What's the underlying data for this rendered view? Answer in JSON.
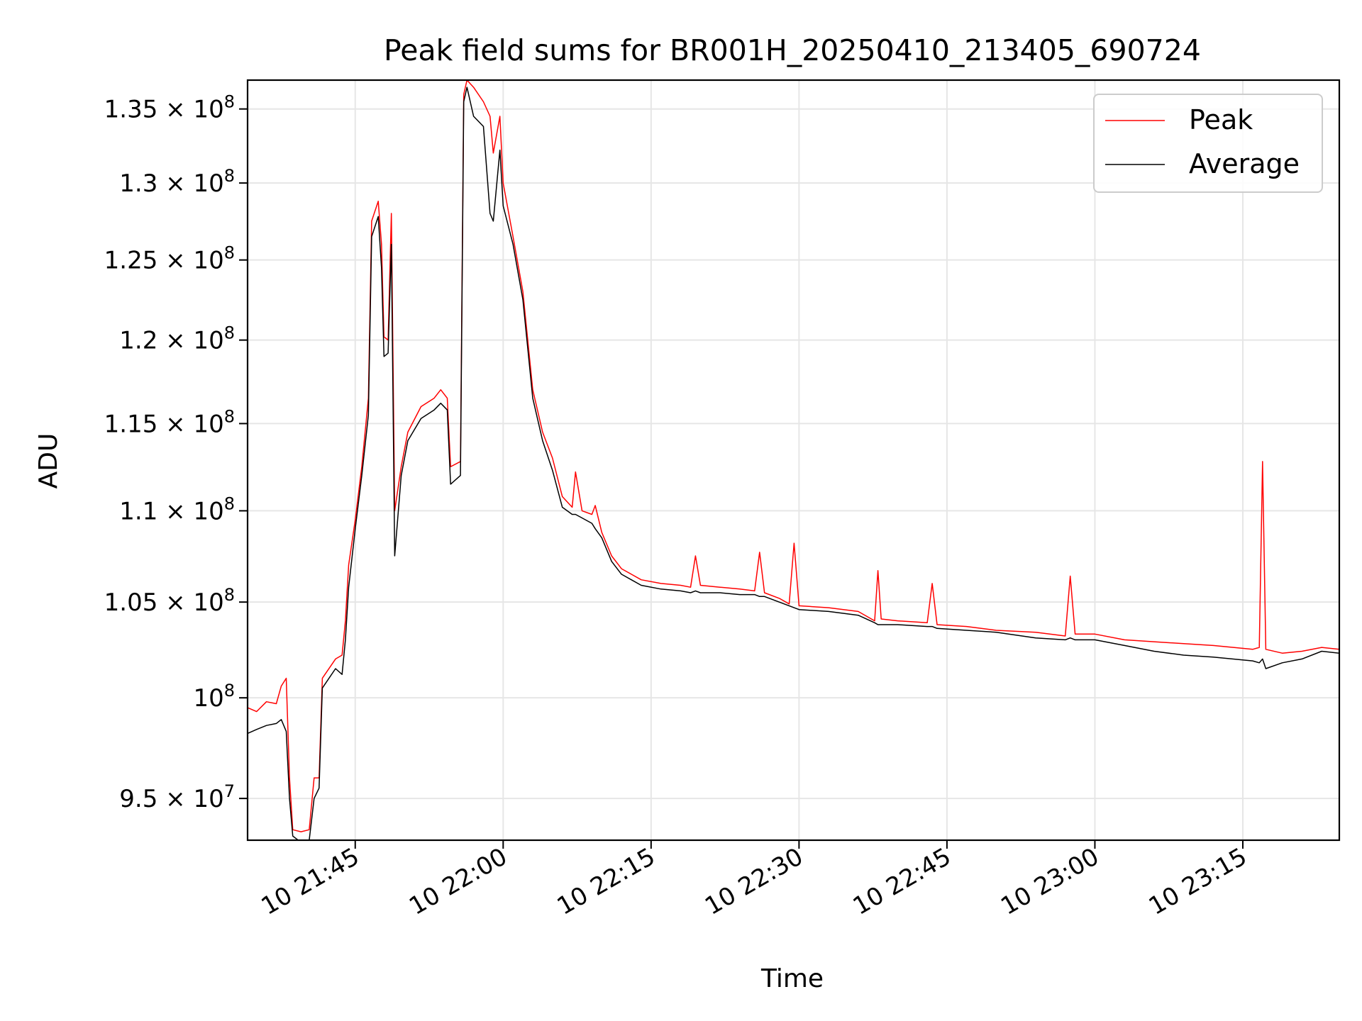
{
  "chart_data": {
    "type": "line",
    "title": "Peak field sums for BR001H_20250410_213405_690724",
    "xlabel": "Time",
    "ylabel": "ADU",
    "x_range": [
      "2025-04-10 21:34:05",
      "2025-04-10 23:24:47"
    ],
    "ylim": [
      93000000,
      137000000
    ],
    "y_scale": "log",
    "grid": true,
    "legend_position": "top-right",
    "x_ticks": [
      {
        "time": "2025-04-10 21:45:00",
        "label": "10 21:45"
      },
      {
        "time": "2025-04-10 22:00:00",
        "label": "10 22:00"
      },
      {
        "time": "2025-04-10 22:15:00",
        "label": "10 22:15"
      },
      {
        "time": "2025-04-10 22:30:00",
        "label": "10 22:30"
      },
      {
        "time": "2025-04-10 22:45:00",
        "label": "10 22:45"
      },
      {
        "time": "2025-04-10 23:00:00",
        "label": "10 23:00"
      },
      {
        "time": "2025-04-10 23:15:00",
        "label": "10 23:15"
      }
    ],
    "y_ticks": [
      {
        "value": 95000000,
        "mant": "9.5",
        "exp": "7"
      },
      {
        "value": 100000000,
        "mant": "",
        "exp": "8"
      },
      {
        "value": 105000000,
        "mant": "1.05",
        "exp": "8"
      },
      {
        "value": 110000000,
        "mant": "1.1",
        "exp": "8"
      },
      {
        "value": 115000000,
        "mant": "1.15",
        "exp": "8"
      },
      {
        "value": 120000000,
        "mant": "1.2",
        "exp": "8"
      },
      {
        "value": 125000000,
        "mant": "1.25",
        "exp": "8"
      },
      {
        "value": 130000000,
        "mant": "1.3",
        "exp": "8"
      },
      {
        "value": 135000000,
        "mant": "1.35",
        "exp": "8"
      }
    ],
    "series": [
      {
        "name": "Peak",
        "color": "#ff0000",
        "points": [
          [
            "2025-04-10 21:34:05",
            99500000
          ],
          [
            "2025-04-10 21:35:00",
            99300000
          ],
          [
            "2025-04-10 21:36:00",
            99800000
          ],
          [
            "2025-04-10 21:37:00",
            99700000
          ],
          [
            "2025-04-10 21:37:30",
            100600000
          ],
          [
            "2025-04-10 21:38:00",
            101000000
          ],
          [
            "2025-04-10 21:38:20",
            96000000
          ],
          [
            "2025-04-10 21:38:40",
            93500000
          ],
          [
            "2025-04-10 21:39:30",
            93400000
          ],
          [
            "2025-04-10 21:40:20",
            93500000
          ],
          [
            "2025-04-10 21:40:50",
            96000000
          ],
          [
            "2025-04-10 21:41:20",
            96000000
          ],
          [
            "2025-04-10 21:41:40",
            101000000
          ],
          [
            "2025-04-10 21:43:00",
            102000000
          ],
          [
            "2025-04-10 21:43:40",
            102200000
          ],
          [
            "2025-04-10 21:44:00",
            104000000
          ],
          [
            "2025-04-10 21:44:20",
            107000000
          ],
          [
            "2025-04-10 21:45:00",
            109500000
          ],
          [
            "2025-04-10 21:45:40",
            112500000
          ],
          [
            "2025-04-10 21:46:20",
            116500000
          ],
          [
            "2025-04-10 21:46:40",
            127500000
          ],
          [
            "2025-04-10 21:47:20",
            128800000
          ],
          [
            "2025-04-10 21:47:40",
            126000000
          ],
          [
            "2025-04-10 21:47:55",
            120200000
          ],
          [
            "2025-04-10 21:48:20",
            120000000
          ],
          [
            "2025-04-10 21:48:40",
            128000000
          ],
          [
            "2025-04-10 21:49:00",
            110000000
          ],
          [
            "2025-04-10 21:49:40",
            112500000
          ],
          [
            "2025-04-10 21:50:20",
            114500000
          ],
          [
            "2025-04-10 21:51:40",
            116000000
          ],
          [
            "2025-04-10 21:53:00",
            116500000
          ],
          [
            "2025-04-10 21:53:40",
            117000000
          ],
          [
            "2025-04-10 21:54:20",
            116500000
          ],
          [
            "2025-04-10 21:54:40",
            112500000
          ],
          [
            "2025-04-10 21:55:40",
            112800000
          ],
          [
            "2025-04-10 21:56:00",
            136000000
          ],
          [
            "2025-04-10 21:56:20",
            137000000
          ],
          [
            "2025-04-10 21:57:00",
            136500000
          ],
          [
            "2025-04-10 21:58:00",
            135500000
          ],
          [
            "2025-04-10 21:58:40",
            134500000
          ],
          [
            "2025-04-10 21:59:00",
            132000000
          ],
          [
            "2025-04-10 21:59:40",
            134500000
          ],
          [
            "2025-04-10 22:00:00",
            130000000
          ],
          [
            "2025-04-10 22:01:00",
            126500000
          ],
          [
            "2025-04-10 22:02:00",
            123000000
          ],
          [
            "2025-04-10 22:03:00",
            117000000
          ],
          [
            "2025-04-10 22:04:00",
            114500000
          ],
          [
            "2025-04-10 22:05:00",
            113000000
          ],
          [
            "2025-04-10 22:06:00",
            110800000
          ],
          [
            "2025-04-10 22:07:00",
            110200000
          ],
          [
            "2025-04-10 22:07:20",
            112200000
          ],
          [
            "2025-04-10 22:08:00",
            110000000
          ],
          [
            "2025-04-10 22:09:00",
            109800000
          ],
          [
            "2025-04-10 22:09:20",
            110300000
          ],
          [
            "2025-04-10 22:10:00",
            108800000
          ],
          [
            "2025-04-10 22:11:00",
            107500000
          ],
          [
            "2025-04-10 22:12:00",
            106800000
          ],
          [
            "2025-04-10 22:13:00",
            106500000
          ],
          [
            "2025-04-10 22:14:00",
            106200000
          ],
          [
            "2025-04-10 22:16:00",
            106000000
          ],
          [
            "2025-04-10 22:18:00",
            105900000
          ],
          [
            "2025-04-10 22:19:00",
            105800000
          ],
          [
            "2025-04-10 22:19:30",
            107500000
          ],
          [
            "2025-04-10 22:20:00",
            105900000
          ],
          [
            "2025-04-10 22:22:00",
            105800000
          ],
          [
            "2025-04-10 22:24:00",
            105700000
          ],
          [
            "2025-04-10 22:25:30",
            105600000
          ],
          [
            "2025-04-10 22:26:00",
            107700000
          ],
          [
            "2025-04-10 22:26:30",
            105500000
          ],
          [
            "2025-04-10 22:28:00",
            105200000
          ],
          [
            "2025-04-10 22:29:00",
            104900000
          ],
          [
            "2025-04-10 22:29:30",
            108200000
          ],
          [
            "2025-04-10 22:30:00",
            104800000
          ],
          [
            "2025-04-10 22:33:00",
            104700000
          ],
          [
            "2025-04-10 22:36:00",
            104500000
          ],
          [
            "2025-04-10 22:37:40",
            104000000
          ],
          [
            "2025-04-10 22:38:00",
            106700000
          ],
          [
            "2025-04-10 22:38:20",
            104100000
          ],
          [
            "2025-04-10 22:40:00",
            104000000
          ],
          [
            "2025-04-10 22:43:00",
            103900000
          ],
          [
            "2025-04-10 22:43:30",
            106000000
          ],
          [
            "2025-04-10 22:44:00",
            103800000
          ],
          [
            "2025-04-10 22:47:00",
            103700000
          ],
          [
            "2025-04-10 22:50:00",
            103500000
          ],
          [
            "2025-04-10 22:54:00",
            103400000
          ],
          [
            "2025-04-10 22:57:00",
            103200000
          ],
          [
            "2025-04-10 22:57:30",
            106400000
          ],
          [
            "2025-04-10 22:58:00",
            103300000
          ],
          [
            "2025-04-10 23:00:00",
            103300000
          ],
          [
            "2025-04-10 23:03:00",
            103000000
          ],
          [
            "2025-04-10 23:06:00",
            102900000
          ],
          [
            "2025-04-10 23:09:00",
            102800000
          ],
          [
            "2025-04-10 23:12:00",
            102700000
          ],
          [
            "2025-04-10 23:16:00",
            102500000
          ],
          [
            "2025-04-10 23:16:40",
            102600000
          ],
          [
            "2025-04-10 23:17:00",
            112800000
          ],
          [
            "2025-04-10 23:17:20",
            102500000
          ],
          [
            "2025-04-10 23:19:00",
            102300000
          ],
          [
            "2025-04-10 23:21:00",
            102400000
          ],
          [
            "2025-04-10 23:23:00",
            102600000
          ],
          [
            "2025-04-10 23:24:47",
            102500000
          ]
        ]
      },
      {
        "name": "Average",
        "color": "#000000",
        "points": [
          [
            "2025-04-10 21:34:05",
            98200000
          ],
          [
            "2025-04-10 21:35:00",
            98400000
          ],
          [
            "2025-04-10 21:36:00",
            98600000
          ],
          [
            "2025-04-10 21:37:00",
            98700000
          ],
          [
            "2025-04-10 21:37:30",
            98900000
          ],
          [
            "2025-04-10 21:38:00",
            98300000
          ],
          [
            "2025-04-10 21:38:20",
            95000000
          ],
          [
            "2025-04-10 21:38:40",
            93200000
          ],
          [
            "2025-04-10 21:39:30",
            92900000
          ],
          [
            "2025-04-10 21:40:20",
            93000000
          ],
          [
            "2025-04-10 21:40:50",
            95000000
          ],
          [
            "2025-04-10 21:41:20",
            95500000
          ],
          [
            "2025-04-10 21:41:40",
            100500000
          ],
          [
            "2025-04-10 21:43:00",
            101500000
          ],
          [
            "2025-04-10 21:43:40",
            101200000
          ],
          [
            "2025-04-10 21:44:00",
            103000000
          ],
          [
            "2025-04-10 21:44:20",
            105800000
          ],
          [
            "2025-04-10 21:45:00",
            109000000
          ],
          [
            "2025-04-10 21:45:40",
            112000000
          ],
          [
            "2025-04-10 21:46:20",
            115500000
          ],
          [
            "2025-04-10 21:46:40",
            126500000
          ],
          [
            "2025-04-10 21:47:20",
            127800000
          ],
          [
            "2025-04-10 21:47:40",
            124500000
          ],
          [
            "2025-04-10 21:47:55",
            119000000
          ],
          [
            "2025-04-10 21:48:20",
            119200000
          ],
          [
            "2025-04-10 21:48:40",
            126000000
          ],
          [
            "2025-04-10 21:49:00",
            107500000
          ],
          [
            "2025-04-10 21:49:40",
            112000000
          ],
          [
            "2025-04-10 21:50:20",
            114000000
          ],
          [
            "2025-04-10 21:51:40",
            115300000
          ],
          [
            "2025-04-10 21:53:00",
            115800000
          ],
          [
            "2025-04-10 21:53:40",
            116200000
          ],
          [
            "2025-04-10 21:54:20",
            115800000
          ],
          [
            "2025-04-10 21:54:40",
            111500000
          ],
          [
            "2025-04-10 21:55:40",
            112000000
          ],
          [
            "2025-04-10 21:56:00",
            135500000
          ],
          [
            "2025-04-10 21:56:20",
            136500000
          ],
          [
            "2025-04-10 21:57:00",
            134500000
          ],
          [
            "2025-04-10 21:58:00",
            133800000
          ],
          [
            "2025-04-10 21:58:40",
            128000000
          ],
          [
            "2025-04-10 21:59:00",
            127500000
          ],
          [
            "2025-04-10 21:59:40",
            132200000
          ],
          [
            "2025-04-10 22:00:00",
            128500000
          ],
          [
            "2025-04-10 22:01:00",
            126000000
          ],
          [
            "2025-04-10 22:02:00",
            122500000
          ],
          [
            "2025-04-10 22:03:00",
            116500000
          ],
          [
            "2025-04-10 22:04:00",
            114000000
          ],
          [
            "2025-04-10 22:05:00",
            112300000
          ],
          [
            "2025-04-10 22:06:00",
            110200000
          ],
          [
            "2025-04-10 22:07:00",
            109800000
          ],
          [
            "2025-04-10 22:07:20",
            109800000
          ],
          [
            "2025-04-10 22:08:00",
            109600000
          ],
          [
            "2025-04-10 22:09:00",
            109300000
          ],
          [
            "2025-04-10 22:09:20",
            109000000
          ],
          [
            "2025-04-10 22:10:00",
            108500000
          ],
          [
            "2025-04-10 22:11:00",
            107200000
          ],
          [
            "2025-04-10 22:12:00",
            106500000
          ],
          [
            "2025-04-10 22:13:00",
            106200000
          ],
          [
            "2025-04-10 22:14:00",
            105900000
          ],
          [
            "2025-04-10 22:16:00",
            105700000
          ],
          [
            "2025-04-10 22:18:00",
            105600000
          ],
          [
            "2025-04-10 22:19:00",
            105500000
          ],
          [
            "2025-04-10 22:19:30",
            105600000
          ],
          [
            "2025-04-10 22:20:00",
            105500000
          ],
          [
            "2025-04-10 22:22:00",
            105500000
          ],
          [
            "2025-04-10 22:24:00",
            105400000
          ],
          [
            "2025-04-10 22:25:30",
            105400000
          ],
          [
            "2025-04-10 22:26:00",
            105300000
          ],
          [
            "2025-04-10 22:26:30",
            105300000
          ],
          [
            "2025-04-10 22:28:00",
            105000000
          ],
          [
            "2025-04-10 22:29:00",
            104800000
          ],
          [
            "2025-04-10 22:29:30",
            104700000
          ],
          [
            "2025-04-10 22:30:00",
            104600000
          ],
          [
            "2025-04-10 22:33:00",
            104500000
          ],
          [
            "2025-04-10 22:36:00",
            104300000
          ],
          [
            "2025-04-10 22:37:40",
            103900000
          ],
          [
            "2025-04-10 22:38:00",
            103800000
          ],
          [
            "2025-04-10 22:38:20",
            103800000
          ],
          [
            "2025-04-10 22:40:00",
            103800000
          ],
          [
            "2025-04-10 22:43:00",
            103700000
          ],
          [
            "2025-04-10 22:43:30",
            103700000
          ],
          [
            "2025-04-10 22:44:00",
            103600000
          ],
          [
            "2025-04-10 22:47:00",
            103500000
          ],
          [
            "2025-04-10 22:50:00",
            103400000
          ],
          [
            "2025-04-10 22:54:00",
            103100000
          ],
          [
            "2025-04-10 22:57:00",
            103000000
          ],
          [
            "2025-04-10 22:57:30",
            103100000
          ],
          [
            "2025-04-10 22:58:00",
            103000000
          ],
          [
            "2025-04-10 23:00:00",
            103000000
          ],
          [
            "2025-04-10 23:03:00",
            102700000
          ],
          [
            "2025-04-10 23:06:00",
            102400000
          ],
          [
            "2025-04-10 23:09:00",
            102200000
          ],
          [
            "2025-04-10 23:12:00",
            102100000
          ],
          [
            "2025-04-10 23:16:00",
            101900000
          ],
          [
            "2025-04-10 23:16:40",
            101800000
          ],
          [
            "2025-04-10 23:17:00",
            102000000
          ],
          [
            "2025-04-10 23:17:20",
            101500000
          ],
          [
            "2025-04-10 23:19:00",
            101800000
          ],
          [
            "2025-04-10 23:21:00",
            102000000
          ],
          [
            "2025-04-10 23:23:00",
            102400000
          ],
          [
            "2025-04-10 23:24:47",
            102300000
          ]
        ]
      }
    ]
  }
}
